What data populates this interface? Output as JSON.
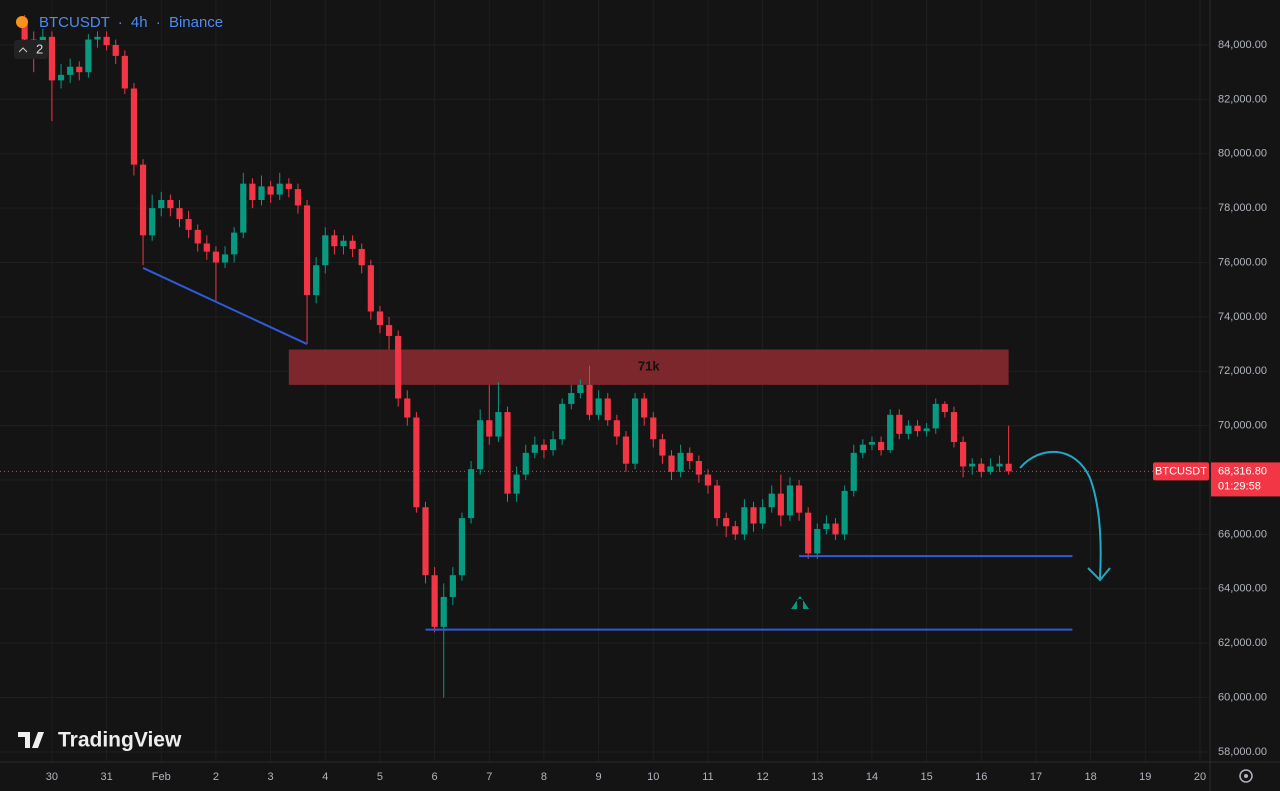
{
  "chart_data": {
    "type": "candlestick",
    "header": {
      "symbol": "BTCUSDT",
      "separator": "·",
      "interval": "4h",
      "exchange": "Binance",
      "indicators": "2"
    },
    "watermark": "TradingView",
    "x": [
      -3,
      -2,
      -1,
      0,
      1,
      2,
      3,
      4,
      5,
      6,
      7,
      8,
      9,
      10,
      11,
      12,
      13,
      14,
      15,
      16,
      17,
      18,
      19,
      20,
      21,
      22,
      23,
      24,
      25,
      26,
      27,
      28,
      29,
      30,
      31,
      32,
      33,
      34,
      35,
      36,
      37,
      38,
      39,
      40,
      41,
      42,
      43,
      44,
      45,
      46,
      47,
      48,
      49,
      50,
      51,
      52,
      53,
      54,
      55,
      56,
      57,
      58,
      59,
      60,
      61,
      62,
      63,
      64,
      65,
      66,
      67,
      68,
      69,
      70,
      71,
      72,
      73,
      74,
      75,
      76,
      77,
      78,
      79,
      80,
      81,
      82,
      83,
      84,
      85,
      86,
      87,
      88,
      89,
      90,
      91,
      92,
      93,
      94,
      95,
      96,
      97,
      98,
      99,
      100,
      101,
      102,
      103,
      104,
      105
    ],
    "open": [
      84800,
      84200,
      83800,
      84300,
      82700,
      82900,
      83200,
      83000,
      84200,
      84300,
      84000,
      83600,
      82400,
      79600,
      77000,
      78000,
      78300,
      78000,
      77600,
      77200,
      76700,
      76400,
      76000,
      76300,
      77100,
      78900,
      78300,
      78800,
      78500,
      78900,
      78700,
      78100,
      74800,
      75900,
      77000,
      76600,
      76800,
      76500,
      75900,
      74200,
      73700,
      73300,
      71000,
      70300,
      67000,
      64500,
      62600,
      63700,
      64500,
      66600,
      68400,
      70200,
      69600,
      70500,
      67500,
      68200,
      69000,
      69300,
      69100,
      69500,
      70800,
      71200,
      71500,
      70400,
      71000,
      70200,
      69600,
      68600,
      71000,
      70300,
      69500,
      68900,
      68300,
      69000,
      68700,
      68200,
      67800,
      66600,
      66300,
      66000,
      67000,
      66400,
      67000,
      67500,
      66700,
      67800,
      66800,
      65300,
      66200,
      66400,
      66000,
      67600,
      69000,
      69300,
      69400,
      69100,
      70400,
      69700,
      70000,
      69800,
      69900,
      70800,
      70500,
      69400,
      68500,
      68600,
      68300,
      68500,
      68600
    ],
    "high": [
      85100,
      84500,
      84600,
      84500,
      83300,
      83500,
      83400,
      84400,
      84500,
      84500,
      84200,
      83800,
      82600,
      79800,
      78500,
      78600,
      78500,
      78300,
      77900,
      77400,
      77000,
      76600,
      76600,
      77300,
      79300,
      79100,
      79200,
      79000,
      79300,
      79100,
      78900,
      78300,
      76200,
      77300,
      77200,
      77000,
      77000,
      76700,
      76100,
      74400,
      74000,
      73500,
      71300,
      70500,
      67200,
      64800,
      64200,
      64800,
      66800,
      68700,
      70600,
      71500,
      71600,
      70700,
      68500,
      69300,
      69600,
      69500,
      69800,
      71000,
      71500,
      71700,
      72200,
      71300,
      71200,
      70400,
      69800,
      71200,
      71200,
      70500,
      69700,
      69100,
      69300,
      69200,
      68900,
      68400,
      68000,
      66800,
      66500,
      67300,
      67200,
      67300,
      67800,
      68200,
      68100,
      68000,
      67000,
      66400,
      66700,
      66600,
      67800,
      69300,
      69500,
      69600,
      69600,
      70600,
      70600,
      70200,
      70200,
      70100,
      71000,
      70900,
      70700,
      69600,
      68800,
      68800,
      68800,
      68900,
      70000
    ],
    "low": [
      83900,
      83000,
      83500,
      81200,
      82400,
      82600,
      82700,
      82800,
      83900,
      83800,
      83300,
      82200,
      79200,
      75900,
      76800,
      77700,
      77700,
      77300,
      76900,
      76400,
      76100,
      74600,
      75800,
      76000,
      76900,
      78000,
      78100,
      78200,
      78300,
      78400,
      77800,
      73000,
      74500,
      75600,
      76300,
      76300,
      76200,
      75600,
      73900,
      73400,
      72800,
      70700,
      70000,
      66800,
      64200,
      62400,
      60000,
      63400,
      64300,
      66400,
      68200,
      69300,
      69400,
      67200,
      67200,
      68000,
      68800,
      68800,
      68900,
      69300,
      70600,
      71000,
      70200,
      70200,
      70000,
      69300,
      68300,
      68400,
      70000,
      69200,
      68600,
      68000,
      68100,
      68400,
      67900,
      67500,
      66300,
      65900,
      65800,
      65800,
      66100,
      66200,
      66800,
      66300,
      66500,
      66500,
      65100,
      65100,
      66000,
      65800,
      65800,
      67400,
      68800,
      69100,
      68900,
      69000,
      69500,
      69500,
      69600,
      69600,
      69700,
      70300,
      69200,
      68100,
      68200,
      68100,
      68200,
      68300,
      68200
    ],
    "close": [
      84200,
      83800,
      84300,
      82700,
      82900,
      83200,
      83000,
      84200,
      84300,
      84000,
      83600,
      82400,
      79600,
      77000,
      78000,
      78300,
      78000,
      77600,
      77200,
      76700,
      76400,
      76000,
      76300,
      77100,
      78900,
      78300,
      78800,
      78500,
      78900,
      78700,
      78100,
      74800,
      75900,
      77000,
      76600,
      76800,
      76500,
      75900,
      74200,
      73700,
      73300,
      71000,
      70300,
      67000,
      64500,
      62600,
      63700,
      64500,
      66600,
      68400,
      70200,
      69600,
      70500,
      67500,
      68200,
      69000,
      69300,
      69100,
      69500,
      70800,
      71200,
      71500,
      70400,
      71000,
      70200,
      69600,
      68600,
      71000,
      70300,
      69500,
      68900,
      68300,
      69000,
      68700,
      68200,
      67800,
      66600,
      66300,
      66000,
      67000,
      66400,
      67000,
      67500,
      66700,
      67800,
      66800,
      65300,
      66200,
      66400,
      66000,
      67600,
      69000,
      69300,
      69400,
      69100,
      70400,
      69700,
      70000,
      69800,
      69900,
      70800,
      70500,
      69400,
      68500,
      68600,
      68300,
      68500,
      68600,
      68316.8
    ],
    "up_color": "#089981",
    "down_color": "#f23645",
    "last_price": {
      "value": 68316.8,
      "label": "68,316.80",
      "tag": "BTCUSDT",
      "countdown": "01:29:58"
    },
    "zone": {
      "label": "71k",
      "x": [
        26,
        105
      ],
      "y": [
        71500,
        72800
      ],
      "color": "#8e2a2f"
    },
    "drawings": [
      {
        "color": "#2f5bd8",
        "x": [
          10,
          28
        ],
        "y": [
          75800,
          73000
        ]
      },
      {
        "color": "#2f5bd8",
        "x": [
          82,
          112
        ],
        "y": [
          65200,
          65200
        ]
      },
      {
        "color": "#2f5bd8",
        "x": [
          41,
          112
        ],
        "y": [
          62500,
          62500
        ]
      }
    ],
    "xlim": [
      -5.7,
      127.1
    ],
    "ylim": [
      57630,
      85655
    ],
    "xticks": [
      {
        "value": 0,
        "label": "30"
      },
      {
        "value": 6,
        "label": "31"
      },
      {
        "value": 12,
        "label": "Feb"
      },
      {
        "value": 18,
        "label": "2"
      },
      {
        "value": 24,
        "label": "3"
      },
      {
        "value": 30,
        "label": "4"
      },
      {
        "value": 36,
        "label": "5"
      },
      {
        "value": 42,
        "label": "6"
      },
      {
        "value": 48,
        "label": "7"
      },
      {
        "value": 54,
        "label": "8"
      },
      {
        "value": 60,
        "label": "9"
      },
      {
        "value": 66,
        "label": "10"
      },
      {
        "value": 72,
        "label": "11"
      },
      {
        "value": 78,
        "label": "12"
      },
      {
        "value": 84,
        "label": "13"
      },
      {
        "value": 90,
        "label": "14"
      },
      {
        "value": 96,
        "label": "15"
      },
      {
        "value": 102,
        "label": "16"
      },
      {
        "value": 108,
        "label": "17"
      },
      {
        "value": 114,
        "label": "18"
      },
      {
        "value": 120,
        "label": "19"
      },
      {
        "value": 126,
        "label": "20"
      }
    ],
    "yticks": [
      {
        "value": 58000,
        "label": "58,000.00"
      },
      {
        "value": 60000,
        "label": "60,000.00"
      },
      {
        "value": 62000,
        "label": "62,000.00"
      },
      {
        "value": 64000,
        "label": "64,000.00"
      },
      {
        "value": 66000,
        "label": "66,000.00"
      },
      {
        "value": 68000,
        "label": "68,000.00"
      },
      {
        "value": 70000,
        "label": "70,000.00"
      },
      {
        "value": 72000,
        "label": "72,000.00"
      },
      {
        "value": 74000,
        "label": "74,000.00"
      },
      {
        "value": 76000,
        "label": "76,000.00"
      },
      {
        "value": 78000,
        "label": "78,000.00"
      },
      {
        "value": 80000,
        "label": "80,000.00"
      },
      {
        "value": 82000,
        "label": "82,000.00"
      },
      {
        "value": 84000,
        "label": "84,000.00"
      }
    ],
    "grid": true
  }
}
